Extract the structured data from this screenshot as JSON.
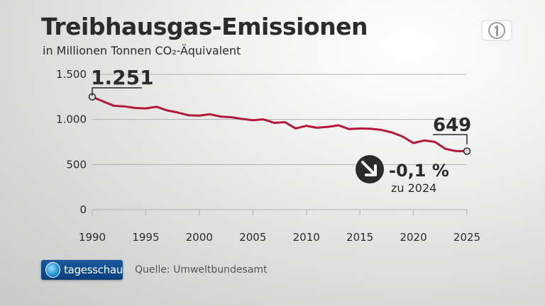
{
  "header": {
    "title": "Treibhausgas-Emissionen",
    "subtitle": "in Millionen Tonnen CO₂-Äquivalent"
  },
  "chart_data": {
    "type": "line",
    "ylim": [
      0,
      1500
    ],
    "xlim": [
      1990,
      2025
    ],
    "grid": true,
    "yticks": [
      0,
      500,
      1000,
      1500
    ],
    "ytick_labels": [
      "0",
      "500",
      "1.000",
      "1.500"
    ],
    "xticks": [
      1990,
      1995,
      2000,
      2005,
      2010,
      2015,
      2020,
      2025
    ],
    "xtick_labels": [
      "1990",
      "1995",
      "2000",
      "2005",
      "2010",
      "2015",
      "2020",
      "2025"
    ],
    "series": [
      {
        "color": "#b3173a",
        "x": [
          1990,
          1991,
          1992,
          1993,
          1994,
          1995,
          1996,
          1997,
          1998,
          1999,
          2000,
          2001,
          2002,
          2003,
          2004,
          2005,
          2006,
          2007,
          2008,
          2009,
          2010,
          2011,
          2012,
          2013,
          2014,
          2015,
          2016,
          2017,
          2018,
          2019,
          2020,
          2021,
          2022,
          2023,
          2024,
          2025
        ],
        "y": [
          1251,
          1201,
          1153,
          1145,
          1128,
          1122,
          1141,
          1100,
          1077,
          1046,
          1043,
          1058,
          1032,
          1025,
          1006,
          992,
          1001,
          962,
          970,
          901,
          930,
          908,
          918,
          935,
          893,
          900,
          898,
          884,
          856,
          810,
          738,
          767,
          752,
          674,
          649,
          649
        ]
      }
    ],
    "annotations": {
      "start_value": "1.251",
      "end_value": "649",
      "change_value": "-0,1 %",
      "change_note": "zu 2024"
    }
  },
  "footer": {
    "brand": "tagesschau",
    "source": "Quelle: Umweltbundesamt"
  },
  "colors": {
    "series": "#b3173a",
    "text": "#2b2b2b",
    "grid": "#b0b0b0",
    "brand_bg": "#0b3f7c"
  },
  "icons": {
    "channel_logo": "ard-one-icon",
    "trend": "arrow-down-right-icon"
  }
}
